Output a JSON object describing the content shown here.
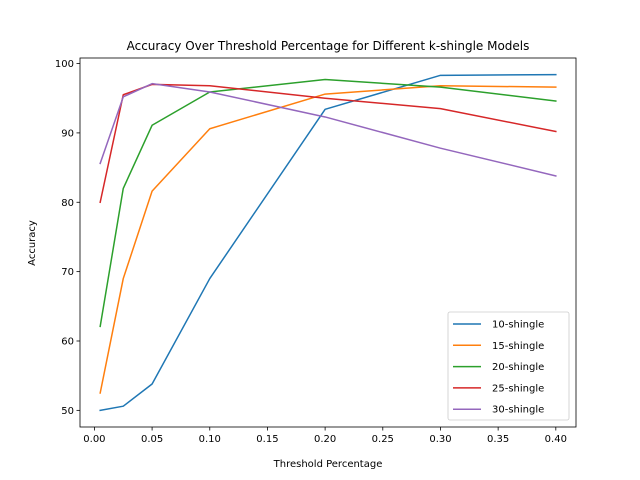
{
  "chart_data": {
    "type": "line",
    "title": "Accuracy Over Threshold Percentage for Different k-shingle Models",
    "xlabel": "Threshold Percentage",
    "ylabel": "Accuracy",
    "xlim": [
      -0.0125,
      0.4175
    ],
    "ylim": [
      47.6,
      100.8
    ],
    "xticks": [
      0.0,
      0.05,
      0.1,
      0.15,
      0.2,
      0.25,
      0.3,
      0.35,
      0.4
    ],
    "xtick_labels": [
      "0.00",
      "0.05",
      "0.10",
      "0.15",
      "0.20",
      "0.25",
      "0.30",
      "0.35",
      "0.40"
    ],
    "yticks": [
      50,
      60,
      70,
      80,
      90,
      100
    ],
    "ytick_labels": [
      "50",
      "60",
      "70",
      "80",
      "90",
      "100"
    ],
    "grid": false,
    "legend_position": "lower-right",
    "x": [
      0.005,
      0.025,
      0.05,
      0.1,
      0.2,
      0.3,
      0.4
    ],
    "series": [
      {
        "name": "10-shingle",
        "color": "#1f77b4",
        "values": [
          50.0,
          50.6,
          53.8,
          69.0,
          93.4,
          98.3,
          98.4
        ]
      },
      {
        "name": "15-shingle",
        "color": "#ff7f0e",
        "values": [
          52.5,
          69.0,
          81.6,
          90.6,
          95.6,
          96.8,
          96.6
        ]
      },
      {
        "name": "20-shingle",
        "color": "#2ca02c",
        "values": [
          62.1,
          82.0,
          91.1,
          95.9,
          97.7,
          96.6,
          94.6
        ]
      },
      {
        "name": "25-shingle",
        "color": "#d62728",
        "values": [
          80.0,
          95.5,
          97.0,
          96.8,
          95.0,
          93.5,
          90.2
        ]
      },
      {
        "name": "30-shingle",
        "color": "#9467bd",
        "values": [
          85.6,
          95.2,
          97.1,
          95.9,
          92.3,
          87.8,
          83.8
        ]
      }
    ]
  }
}
